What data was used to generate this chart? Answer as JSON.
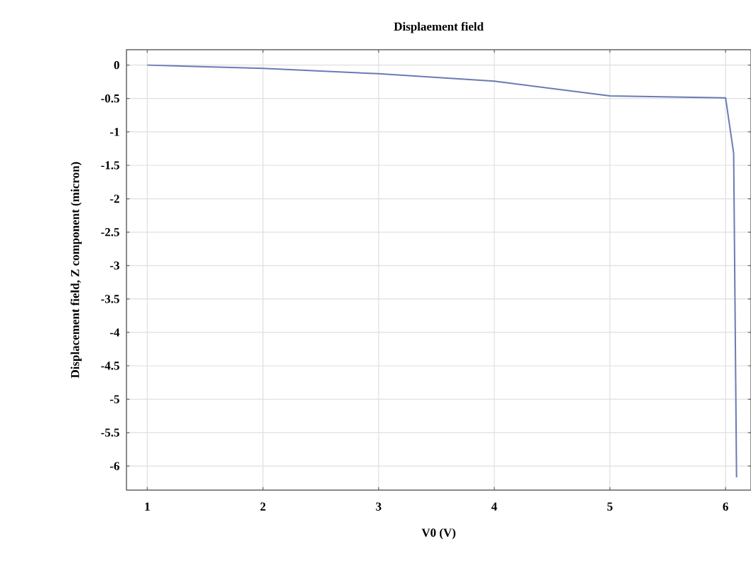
{
  "chart_data": {
    "type": "line",
    "title": "Displaement field",
    "xlabel": "V0 (V)",
    "ylabel": "Displacement field, Z component (micron)",
    "xlim": [
      0.82,
      6.22
    ],
    "ylim": [
      -6.36,
      0.23
    ],
    "xticks": [
      1,
      2,
      3,
      4,
      5,
      6
    ],
    "yticks": [
      0,
      -0.5,
      -1,
      -1.5,
      -2,
      -2.5,
      -3,
      -3.5,
      -4,
      -4.5,
      -5,
      -5.5,
      -6
    ],
    "grid": true,
    "series": [
      {
        "color": "#6a7bb5",
        "x": [
          1,
          2,
          3,
          4,
          5,
          6,
          6.07,
          6.095
        ],
        "values": [
          0,
          -0.05,
          -0.13,
          -0.24,
          -0.46,
          -0.49,
          -1.32,
          -6.17
        ]
      }
    ]
  }
}
